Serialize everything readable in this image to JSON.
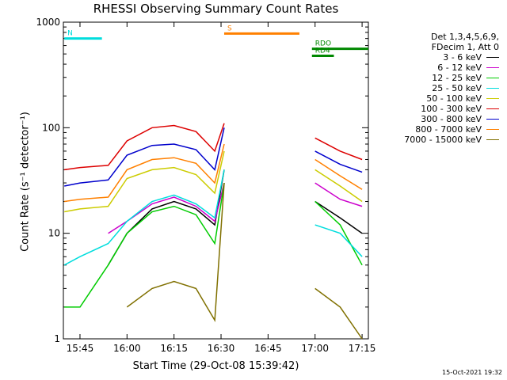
{
  "chart_data": {
    "type": "line",
    "title": "RHESSI Observing Summary Count Rates",
    "xlabel": "Start Time (29-Oct-08 15:39:42)",
    "ylabel": "Count Rate (s⁻¹ detector⁻¹)",
    "yscale": "log",
    "ylim": [
      1,
      1000
    ],
    "xlim": [
      "15:39:42",
      "17:17"
    ],
    "x_ticks": [
      "15:45",
      "16:00",
      "16:15",
      "16:30",
      "16:45",
      "17:00",
      "17:15"
    ],
    "y_ticks": [
      "1",
      "10",
      "100",
      "1000"
    ],
    "legend_header": [
      "Det 1,3,4,5,6,9,",
      "FDecim 1, Att 0"
    ],
    "series": [
      {
        "name": "3 - 6 keV",
        "color": "#000000",
        "values": [
          null,
          null,
          5,
          10,
          17,
          20,
          17,
          12,
          40,
          null,
          20,
          14,
          10
        ]
      },
      {
        "name": "6 - 12 keV",
        "color": "#cc00cc",
        "values": [
          null,
          null,
          10,
          13,
          19,
          22,
          18,
          13,
          30,
          null,
          30,
          21,
          18
        ]
      },
      {
        "name": "12 - 25 keV",
        "color": "#00cc00",
        "values": [
          2,
          2,
          5,
          10,
          16,
          18,
          15,
          8,
          30,
          null,
          20,
          12,
          5
        ]
      },
      {
        "name": "25 - 50 keV",
        "color": "#00dddd",
        "values": [
          5,
          6,
          8,
          13,
          20,
          23,
          19,
          14,
          40,
          null,
          12,
          10,
          6
        ]
      },
      {
        "name": "50 - 100 keV",
        "color": "#cccc00",
        "values": [
          16,
          17,
          18,
          33,
          40,
          42,
          36,
          24,
          60,
          null,
          40,
          28,
          20
        ]
      },
      {
        "name": "100 - 300 keV",
        "color": "#dd0000",
        "values": [
          40,
          42,
          44,
          75,
          100,
          105,
          92,
          60,
          110,
          null,
          80,
          60,
          50
        ]
      },
      {
        "name": "300 - 800 keV",
        "color": "#0000cc",
        "values": [
          28,
          30,
          32,
          55,
          68,
          70,
          62,
          40,
          100,
          null,
          60,
          45,
          38
        ]
      },
      {
        "name": "800 - 7000 keV",
        "color": "#ff8000",
        "values": [
          20,
          21,
          22,
          40,
          50,
          52,
          46,
          30,
          70,
          null,
          50,
          35,
          26
        ]
      },
      {
        "name": "7000 - 15000 keV",
        "color": "#807000",
        "values": [
          null,
          null,
          null,
          2,
          3,
          3.5,
          3,
          1.5,
          30,
          null,
          3,
          2,
          1
        ]
      }
    ],
    "x": [
      "15:40",
      "15:45",
      "15:54",
      "16:00",
      "16:08",
      "16:15",
      "16:22",
      "16:28",
      "16:31",
      "16:48",
      "17:00",
      "17:08",
      "17:15"
    ],
    "annotations": [
      {
        "label": "N",
        "color": "#00dddd",
        "x_range": [
          "15:40",
          "15:52"
        ],
        "y": 700
      },
      {
        "label": "S",
        "color": "#ff8000",
        "x_range": [
          "16:31",
          "16:55"
        ],
        "y": 780
      },
      {
        "label": "RDO",
        "color": "#008800",
        "x_range": [
          "16:59",
          "17:17"
        ],
        "y": 560
      },
      {
        "label": "RD4",
        "color": "#008800",
        "x_range": [
          "16:59",
          "17:06"
        ],
        "y": 480
      }
    ]
  },
  "footer": {
    "timestamp": "15-Oct-2021 19:32"
  }
}
